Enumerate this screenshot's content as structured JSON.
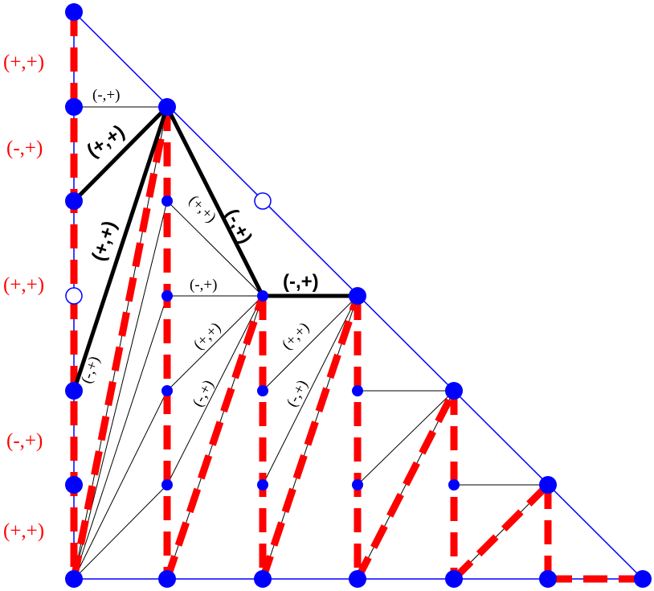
{
  "side_labels": [
    "(+,+)",
    "(-,+)",
    "(+,+)",
    "(-,+)",
    "(+,+)"
  ],
  "edge_labels": {
    "top_horizontal": "(-,+)",
    "bold_upper_left": "(+,+)",
    "bold_lower_left": "(+,+)",
    "bold_diagonal": "(-,+)",
    "bold_horizontal": "(-,+)",
    "small_left_bottom": "(-,+)",
    "col2_diag_top": "(+,+)",
    "col2_horizontal": "(-,+)",
    "col2_diag_mid": "(+,+)",
    "col2_diag_low": "(-,+)",
    "col3_diag_mid": "(+,+)",
    "col3_diag_low": "(-,+)"
  },
  "colors": {
    "node": "#0000ff",
    "outline": "#0000ff",
    "dashed_path": "#ff0000",
    "bold_path": "#000000",
    "side_label": "#ff0000"
  }
}
